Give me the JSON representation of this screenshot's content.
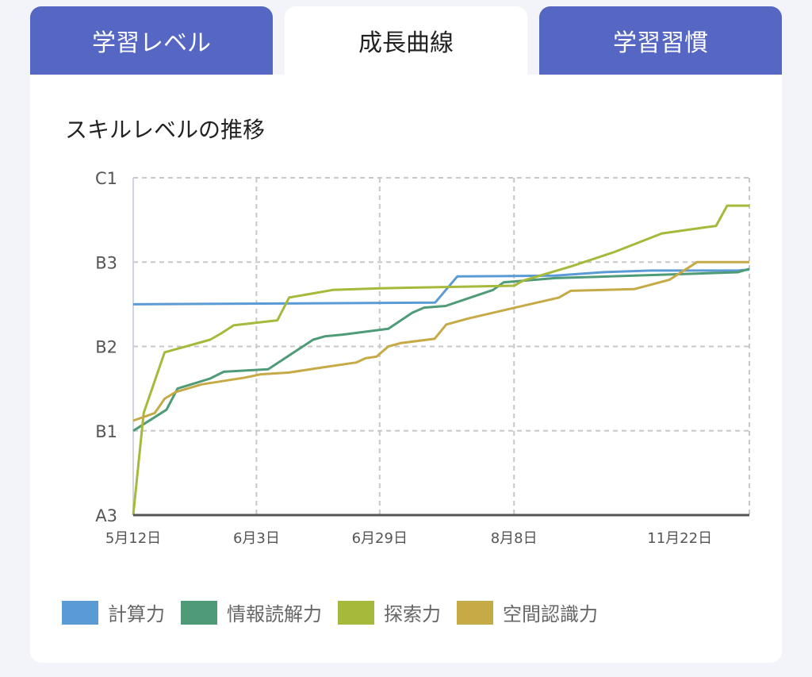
{
  "tabs": [
    {
      "label": "学習レベル",
      "active": false
    },
    {
      "label": "成長曲線",
      "active": true
    },
    {
      "label": "学習習慣",
      "active": false
    }
  ],
  "section_title": "スキルレベルの推移",
  "chart_data": {
    "type": "line",
    "title": "スキルレベルの推移",
    "xlabel": "",
    "ylabel": "",
    "x_note": "x is relative position along the category axis (0-100)",
    "xlim": [
      0,
      100
    ],
    "x_ticks": [
      {
        "x": 0,
        "label": "5月12日"
      },
      {
        "x": 20,
        "label": "6月3日"
      },
      {
        "x": 40,
        "label": "6月29日"
      },
      {
        "x": 61.8,
        "label": "8月8日"
      },
      {
        "x": 88.7,
        "label": "11月22日"
      }
    ],
    "ylim": [
      0,
      4
    ],
    "y_ticks": [
      {
        "y": 0,
        "label": "A3"
      },
      {
        "y": 1,
        "label": "B1"
      },
      {
        "y": 2,
        "label": "B2"
      },
      {
        "y": 3,
        "label": "B3"
      },
      {
        "y": 4,
        "label": "C1"
      }
    ],
    "grid": true,
    "legend_position": "bottom",
    "series": [
      {
        "name": "計算力",
        "color": "#5b9bd5",
        "points": [
          [
            0,
            2.5
          ],
          [
            49,
            2.52
          ],
          [
            52.6,
            2.83
          ],
          [
            68.5,
            2.84
          ],
          [
            76.2,
            2.88
          ],
          [
            84,
            2.9
          ],
          [
            98.1,
            2.9
          ],
          [
            100,
            2.91
          ]
        ]
      },
      {
        "name": "情報読解力",
        "color": "#4f9b78",
        "points": [
          [
            0,
            1.0
          ],
          [
            5.4,
            1.25
          ],
          [
            7.2,
            1.5
          ],
          [
            12.5,
            1.62
          ],
          [
            14.7,
            1.7
          ],
          [
            21.9,
            1.73
          ],
          [
            29.2,
            2.08
          ],
          [
            31.1,
            2.12
          ],
          [
            34,
            2.14
          ],
          [
            41.4,
            2.21
          ],
          [
            45.3,
            2.4
          ],
          [
            47.2,
            2.46
          ],
          [
            50.7,
            2.48
          ],
          [
            58.4,
            2.67
          ],
          [
            60.1,
            2.76
          ],
          [
            68.5,
            2.81
          ],
          [
            81.3,
            2.84
          ],
          [
            98.1,
            2.88
          ],
          [
            100,
            2.92
          ]
        ]
      },
      {
        "name": "探索力",
        "color": "#a6b93b",
        "points": [
          [
            0,
            0
          ],
          [
            1.7,
            1.21
          ],
          [
            5.1,
            1.93
          ],
          [
            12.5,
            2.08
          ],
          [
            14.4,
            2.16
          ],
          [
            16.3,
            2.25
          ],
          [
            23.4,
            2.31
          ],
          [
            25.3,
            2.58
          ],
          [
            32.4,
            2.67
          ],
          [
            40.2,
            2.69
          ],
          [
            61.8,
            2.72
          ],
          [
            63.3,
            2.78
          ],
          [
            71.1,
            2.95
          ],
          [
            78.1,
            3.12
          ],
          [
            85.8,
            3.34
          ],
          [
            94.6,
            3.43
          ],
          [
            96.4,
            3.67
          ],
          [
            100,
            3.67
          ]
        ]
      },
      {
        "name": "空間認識力",
        "color": "#c5aa46",
        "points": [
          [
            0,
            1.12
          ],
          [
            3.5,
            1.21
          ],
          [
            5.1,
            1.38
          ],
          [
            6.9,
            1.46
          ],
          [
            11.1,
            1.55
          ],
          [
            18.1,
            1.63
          ],
          [
            20.7,
            1.67
          ],
          [
            25.3,
            1.69
          ],
          [
            29.7,
            1.74
          ],
          [
            36.2,
            1.81
          ],
          [
            37.7,
            1.86
          ],
          [
            39.5,
            1.88
          ],
          [
            41.4,
            2.0
          ],
          [
            43.4,
            2.04
          ],
          [
            48.9,
            2.09
          ],
          [
            50.8,
            2.26
          ],
          [
            54.3,
            2.33
          ],
          [
            62,
            2.46
          ],
          [
            69.1,
            2.58
          ],
          [
            71,
            2.66
          ],
          [
            81.3,
            2.68
          ],
          [
            87,
            2.79
          ],
          [
            91.5,
            3.0
          ],
          [
            100,
            3.0
          ]
        ]
      }
    ]
  }
}
